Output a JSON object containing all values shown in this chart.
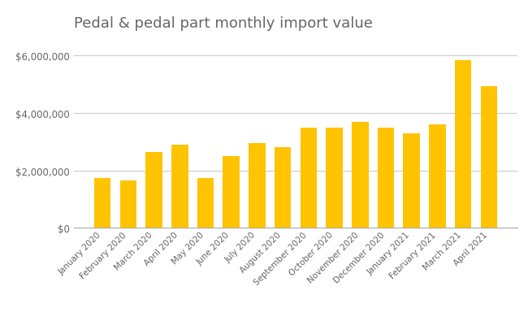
{
  "title": "Pedal & pedal part monthly import value",
  "categories": [
    "January 2020",
    "February 2020",
    "March 2020",
    "April 2020",
    "May 2020",
    "June 2020",
    "July 2020",
    "August 2020",
    "September 2020",
    "October 2020",
    "November 2020",
    "December 2020",
    "January 2021",
    "February 2021",
    "March 2021",
    "April 2021"
  ],
  "values": [
    1750000,
    1650000,
    2650000,
    2900000,
    1750000,
    2500000,
    2950000,
    2800000,
    3500000,
    3500000,
    3700000,
    3500000,
    3300000,
    3600000,
    5850000,
    4950000
  ],
  "bar_color": "#FFC300",
  "background_color": "#ffffff",
  "title_color": "#666666",
  "title_fontsize": 13,
  "tick_color": "#666666",
  "grid_color": "#cccccc",
  "ylim": [
    0,
    6600000
  ],
  "yticks": [
    0,
    2000000,
    4000000,
    6000000
  ]
}
